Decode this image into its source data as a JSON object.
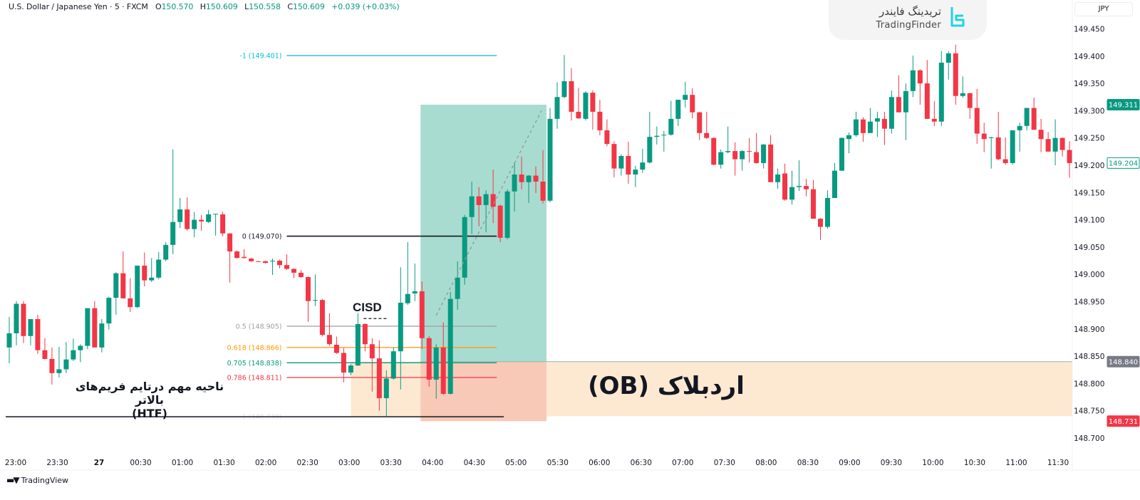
{
  "header": {
    "symbol": "U.S. Dollar / Japanese Yen · 5 · FXCM",
    "o_label": "O",
    "o": "150.570",
    "h_label": "H",
    "h": "150.609",
    "l_label": "L",
    "l": "150.558",
    "c_label": "C",
    "c": "150.609",
    "change": "+0.039 (+0.03%)"
  },
  "logo": {
    "fa": "تریدینگ فایندر",
    "en": "TradingFinder"
  },
  "currency": "JPY",
  "footer": {
    "brand": "TradingView"
  },
  "annotations": {
    "cisd": "CISD",
    "htf_line1": "ناحیه مهم درتایم فریم‌های بالاتر",
    "htf_line2": "(HTF)",
    "ob": "اردبلاک (OB)"
  },
  "colors": {
    "up": "#089981",
    "down": "#f23645",
    "tp_zone": "#a9dcd0",
    "sl_zone": "#f8c9b6",
    "ob_zone": "#fde9d2",
    "fib_minus1": "#00bcd4",
    "fib_0": "#131722",
    "fib_05": "#9e9e9e",
    "fib_0618": "#ff9800",
    "fib_0705": "#089981",
    "fib_0786": "#f23645",
    "fib_1": "#131722"
  },
  "chart_data": {
    "type": "candlestick",
    "title": "U.S. Dollar / Japanese Yen · 5 · FXCM",
    "ylim": [
      148.68,
      149.477
    ],
    "y_ticks": [
      "149.450",
      "149.400",
      "149.350",
      "149.300",
      "149.250",
      "149.200",
      "149.150",
      "149.100",
      "149.050",
      "149.000",
      "148.950",
      "148.900",
      "148.850",
      "148.800",
      "148.750",
      "148.700"
    ],
    "x_ticks": [
      "23:00",
      "23:30",
      "27",
      "00:30",
      "01:00",
      "01:30",
      "02:00",
      "02:30",
      "03:00",
      "03:30",
      "04:00",
      "04:30",
      "05:00",
      "05:30",
      "06:00",
      "06:30",
      "07:00",
      "07:30",
      "08:00",
      "08:30",
      "09:00",
      "09:30",
      "10:00",
      "10:30",
      "11:00",
      "11:30"
    ],
    "x_tick_bold": "27",
    "first_bar_time": "22:55",
    "candles_format": "open, high, low, close",
    "candles": [
      [
        148.866,
        148.922,
        148.837,
        148.892
      ],
      [
        148.892,
        148.951,
        148.87,
        148.946
      ],
      [
        148.946,
        148.951,
        148.874,
        148.887
      ],
      [
        148.887,
        148.918,
        148.87,
        148.918
      ],
      [
        148.918,
        148.926,
        148.854,
        148.861
      ],
      [
        148.861,
        148.883,
        148.844,
        148.845
      ],
      [
        148.845,
        148.866,
        148.798,
        148.819
      ],
      [
        148.819,
        148.867,
        148.811,
        148.826
      ],
      [
        148.826,
        148.876,
        148.819,
        148.844
      ],
      [
        148.844,
        148.882,
        148.841,
        148.861
      ],
      [
        148.861,
        148.872,
        148.839,
        148.869
      ],
      [
        148.869,
        148.938,
        148.863,
        148.938
      ],
      [
        148.938,
        148.951,
        148.866,
        148.866
      ],
      [
        148.866,
        148.918,
        148.857,
        148.91
      ],
      [
        148.91,
        148.959,
        148.899,
        148.957
      ],
      [
        148.957,
        149.004,
        148.926,
        149.002
      ],
      [
        149.002,
        149.042,
        148.956,
        148.956
      ],
      [
        148.956,
        148.993,
        148.931,
        148.94
      ],
      [
        148.94,
        149.016,
        148.938,
        149.016
      ],
      [
        149.016,
        149.04,
        148.978,
        148.989
      ],
      [
        148.989,
        149.03,
        148.986,
        148.994
      ],
      [
        148.994,
        149.041,
        148.991,
        149.027
      ],
      [
        149.027,
        149.059,
        149.024,
        149.054
      ],
      [
        149.054,
        149.229,
        149.037,
        149.096
      ],
      [
        149.096,
        149.14,
        149.085,
        149.119
      ],
      [
        149.119,
        149.141,
        149.08,
        149.083
      ],
      [
        149.083,
        149.114,
        149.068,
        149.1
      ],
      [
        149.1,
        149.109,
        149.08,
        149.097
      ],
      [
        149.096,
        149.118,
        149.094,
        149.11
      ],
      [
        149.11,
        149.111,
        149.071,
        149.111
      ],
      [
        149.11,
        149.115,
        149.07,
        149.075
      ],
      [
        149.075,
        149.075,
        148.985,
        149.042
      ],
      [
        149.042,
        149.044,
        149.029,
        149.03
      ],
      [
        149.032,
        149.046,
        149.029,
        149.03
      ],
      [
        149.029,
        149.03,
        149.023,
        149.024
      ],
      [
        149.024,
        149.025,
        149.023,
        149.023
      ],
      [
        149.024,
        149.025,
        149.02,
        149.021
      ],
      [
        149.024,
        149.029,
        148.999,
        149.025
      ],
      [
        149.025,
        149.027,
        149.011,
        149.017
      ],
      [
        149.017,
        149.037,
        149.008,
        149.01
      ],
      [
        149.01,
        149.011,
        148.993,
        149.003
      ],
      [
        149.003,
        149.008,
        148.994,
        148.995
      ],
      [
        148.995,
        148.996,
        148.913,
        148.951
      ],
      [
        148.952,
        149.0,
        148.942,
        148.953
      ],
      [
        148.953,
        148.955,
        148.886,
        148.889
      ],
      [
        148.889,
        148.929,
        148.869,
        148.872
      ],
      [
        148.871,
        148.886,
        148.854,
        148.856
      ],
      [
        148.856,
        148.865,
        148.802,
        148.82
      ],
      [
        148.82,
        148.836,
        148.815,
        148.833
      ],
      [
        148.833,
        148.929,
        148.832,
        148.909
      ],
      [
        148.909,
        148.91,
        148.859,
        148.872
      ],
      [
        148.872,
        148.883,
        148.785,
        148.846
      ],
      [
        148.846,
        148.879,
        148.75,
        148.773
      ],
      [
        148.773,
        148.824,
        148.739,
        148.809
      ],
      [
        148.809,
        148.866,
        148.807,
        148.859
      ],
      [
        148.859,
        149.013,
        148.789,
        148.948
      ],
      [
        148.947,
        149.059,
        148.944,
        148.964
      ],
      [
        148.965,
        149.02,
        148.951,
        148.969
      ],
      [
        148.969,
        148.987,
        148.863,
        148.883
      ],
      [
        148.883,
        148.887,
        148.794,
        148.807
      ],
      [
        148.807,
        148.872,
        148.772,
        148.866
      ],
      [
        148.866,
        148.912,
        148.779,
        148.781
      ],
      [
        148.781,
        148.968,
        148.78,
        148.955
      ],
      [
        148.955,
        149.024,
        148.935,
        148.994
      ],
      [
        148.994,
        149.109,
        148.981,
        149.105
      ],
      [
        149.105,
        149.17,
        149.074,
        149.143
      ],
      [
        149.143,
        149.16,
        149.088,
        149.127
      ],
      [
        149.127,
        149.154,
        149.077,
        149.147
      ],
      [
        149.147,
        149.192,
        149.094,
        149.124
      ],
      [
        149.126,
        149.128,
        149.059,
        149.067
      ],
      [
        149.067,
        149.156,
        149.064,
        149.152
      ],
      [
        149.152,
        149.205,
        149.115,
        149.183
      ],
      [
        149.183,
        149.216,
        149.156,
        149.169
      ],
      [
        149.169,
        149.182,
        149.131,
        149.181
      ],
      [
        149.181,
        149.198,
        149.149,
        149.17
      ],
      [
        149.17,
        149.228,
        149.13,
        149.135
      ],
      [
        149.135,
        149.305,
        149.132,
        149.285
      ],
      [
        149.285,
        149.352,
        149.267,
        149.325
      ],
      [
        149.325,
        149.402,
        149.323,
        149.354
      ],
      [
        149.354,
        149.378,
        149.282,
        149.298
      ],
      [
        149.298,
        149.342,
        149.285,
        149.286
      ],
      [
        149.285,
        149.336,
        149.282,
        149.333
      ],
      [
        149.333,
        149.337,
        149.265,
        149.298
      ],
      [
        149.298,
        149.32,
        149.255,
        149.264
      ],
      [
        149.264,
        149.284,
        149.235,
        149.239
      ],
      [
        149.239,
        149.244,
        149.178,
        149.194
      ],
      [
        149.194,
        149.22,
        149.181,
        149.217
      ],
      [
        149.217,
        149.243,
        149.166,
        149.183
      ],
      [
        149.183,
        149.199,
        149.16,
        149.192
      ],
      [
        149.192,
        149.23,
        149.186,
        149.205
      ],
      [
        149.205,
        149.298,
        149.203,
        149.252
      ],
      [
        149.252,
        149.271,
        149.238,
        149.254
      ],
      [
        149.255,
        149.263,
        149.225,
        149.256
      ],
      [
        149.256,
        149.318,
        149.254,
        149.285
      ],
      [
        149.285,
        149.32,
        149.272,
        149.32
      ],
      [
        149.32,
        149.353,
        149.306,
        149.329
      ],
      [
        149.329,
        149.341,
        149.286,
        149.297
      ],
      [
        149.297,
        149.298,
        149.246,
        149.259
      ],
      [
        149.259,
        149.298,
        149.248,
        149.25
      ],
      [
        149.25,
        149.251,
        149.2,
        149.201
      ],
      [
        149.201,
        149.229,
        149.194,
        149.224
      ],
      [
        149.224,
        149.271,
        149.222,
        149.226
      ],
      [
        149.226,
        149.242,
        149.181,
        149.211
      ],
      [
        149.211,
        149.228,
        149.19,
        149.226
      ],
      [
        149.226,
        149.25,
        149.205,
        149.225
      ],
      [
        149.224,
        149.259,
        149.203,
        149.204
      ],
      [
        149.204,
        149.239,
        149.194,
        149.238
      ],
      [
        149.238,
        149.255,
        149.169,
        149.169
      ],
      [
        149.169,
        149.194,
        149.157,
        149.183
      ],
      [
        149.185,
        149.203,
        149.135,
        149.137
      ],
      [
        149.137,
        149.19,
        149.128,
        149.16
      ],
      [
        149.16,
        149.209,
        149.153,
        149.162
      ],
      [
        149.162,
        149.175,
        149.143,
        149.156
      ],
      [
        149.156,
        149.173,
        149.102,
        149.102
      ],
      [
        149.102,
        149.103,
        149.063,
        149.087
      ],
      [
        149.087,
        149.154,
        149.084,
        149.14
      ],
      [
        149.14,
        149.204,
        149.14,
        149.19
      ],
      [
        149.19,
        149.251,
        149.19,
        149.25
      ],
      [
        149.248,
        149.26,
        149.222,
        149.255
      ],
      [
        149.255,
        149.298,
        149.252,
        149.284
      ],
      [
        149.284,
        149.288,
        149.243,
        149.259
      ],
      [
        149.259,
        149.305,
        149.259,
        149.28
      ],
      [
        149.28,
        149.298,
        149.252,
        149.286
      ],
      [
        149.285,
        149.298,
        149.237,
        149.267
      ],
      [
        149.267,
        149.337,
        149.258,
        149.325
      ],
      [
        149.325,
        149.365,
        149.297,
        149.297
      ],
      [
        149.297,
        149.35,
        149.246,
        149.336
      ],
      [
        149.336,
        149.401,
        149.325,
        149.374
      ],
      [
        149.374,
        149.376,
        149.311,
        149.35
      ],
      [
        149.35,
        149.393,
        149.285,
        149.285
      ],
      [
        149.285,
        149.318,
        149.272,
        149.28
      ],
      [
        149.28,
        149.409,
        149.272,
        149.388
      ],
      [
        149.388,
        149.409,
        149.357,
        149.405
      ],
      [
        149.405,
        149.421,
        149.311,
        149.327
      ],
      [
        149.327,
        149.363,
        149.324,
        149.332
      ],
      [
        149.332,
        149.333,
        149.285,
        149.305
      ],
      [
        149.305,
        149.34,
        149.239,
        149.258
      ],
      [
        149.258,
        149.278,
        149.224,
        149.248
      ],
      [
        149.25,
        149.252,
        149.194,
        149.251
      ],
      [
        149.251,
        149.298,
        149.209,
        149.211
      ],
      [
        149.211,
        149.251,
        149.201,
        149.204
      ],
      [
        149.204,
        149.264,
        149.201,
        149.264
      ],
      [
        149.264,
        149.278,
        149.225,
        149.272
      ],
      [
        149.272,
        149.305,
        149.264,
        149.305
      ],
      [
        149.305,
        149.324,
        149.265,
        149.265
      ],
      [
        149.265,
        149.285,
        149.224,
        149.248
      ],
      [
        149.248,
        149.261,
        149.225,
        149.225
      ],
      [
        149.225,
        149.284,
        149.2,
        149.25
      ],
      [
        149.25,
        149.251,
        149.216,
        149.228
      ],
      [
        149.228,
        149.244,
        149.177,
        149.204
      ]
    ],
    "fib_levels": [
      {
        "level": "-1",
        "price": 149.401,
        "label": "-1 (149.401)",
        "color": "#00bcd4"
      },
      {
        "level": "0",
        "price": 149.07,
        "label": "0 (149.070)",
        "color": "#131722"
      },
      {
        "level": "0.5",
        "price": 148.905,
        "label": "0.5 (148.905)",
        "color": "#9e9e9e"
      },
      {
        "level": "0.618",
        "price": 148.866,
        "label": "0.618 (148.866)",
        "color": "#ff9800"
      },
      {
        "level": "0.705",
        "price": 148.838,
        "label": "0.705 (148.838)",
        "color": "#089981"
      },
      {
        "level": "0.786",
        "price": 148.811,
        "label": "0.786 (148.811)",
        "color": "#f23645"
      },
      {
        "level": "1",
        "price": 148.739,
        "label": "1 (148.739)",
        "color": "#131722"
      }
    ],
    "fib_range_bars": [
      39,
      68.5
    ],
    "zones": {
      "take_profit": {
        "top": 149.311,
        "bottom": 148.84,
        "from_bar": 57.8,
        "to_bar": 75.5
      },
      "stop_loss": {
        "top": 148.84,
        "bottom": 148.731,
        "from_bar": 57.8,
        "to_bar": 75.5
      },
      "order_block": {
        "top": 148.84,
        "bottom": 148.74,
        "from_bar": 48,
        "to_bar": 150
      }
    },
    "trend_line": {
      "from": [
        60,
        148.925
      ],
      "to": [
        74.8,
        149.3
      ]
    },
    "cisd_line": {
      "price": 148.919,
      "from_bar": 49.8,
      "to_bar": 53.3
    },
    "price_badges": [
      {
        "value": "149.311",
        "price": 149.311,
        "style": "tp"
      },
      {
        "value": "149.204",
        "price": 149.204,
        "style": "last"
      },
      {
        "value": "148.840",
        "price": 148.84,
        "style": "entry"
      },
      {
        "value": "148.731",
        "price": 148.731,
        "style": "sl"
      }
    ]
  }
}
